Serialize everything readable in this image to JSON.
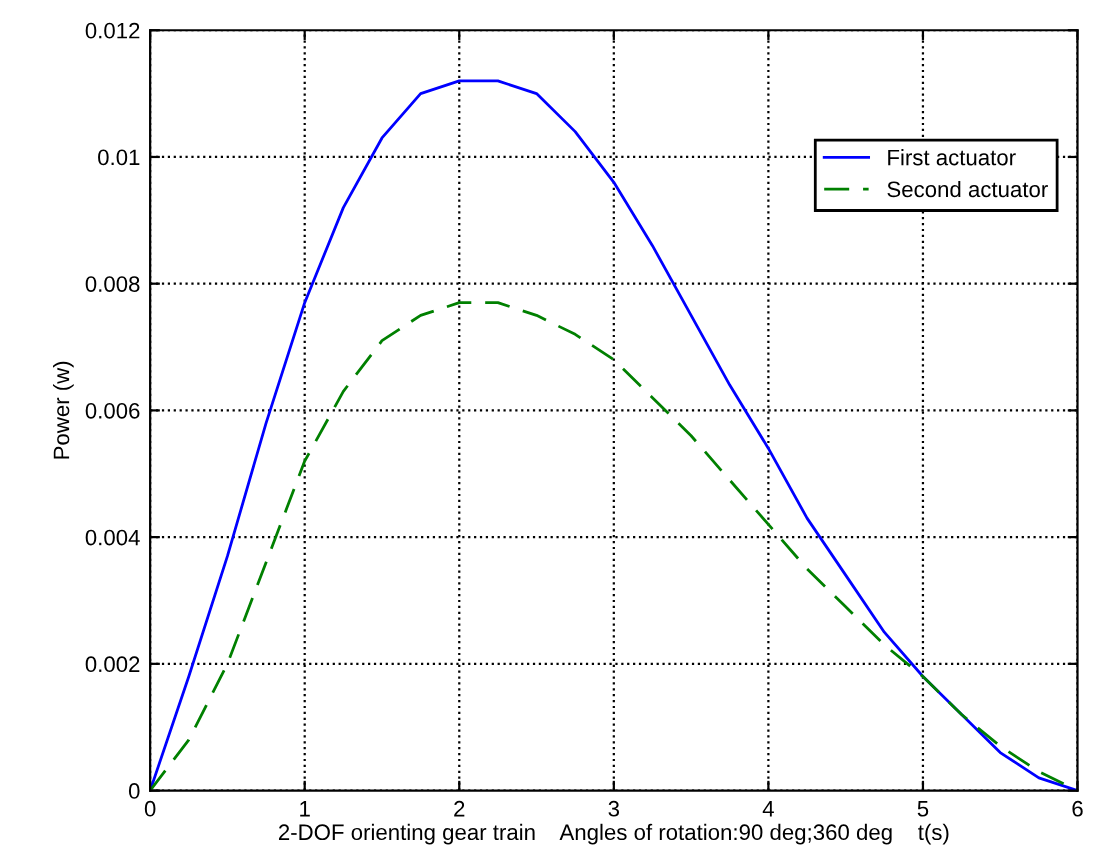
{
  "chart_data": {
    "type": "line",
    "xlabel": "2-DOF orienting gear train    Angles of rotation:90 deg;360 deg    t(s)",
    "ylabel": "Power (w)",
    "x": [
      0,
      0.25,
      0.5,
      0.75,
      1,
      1.25,
      1.5,
      1.75,
      2,
      2.25,
      2.5,
      2.75,
      3,
      3.25,
      3.5,
      3.75,
      4,
      4.25,
      4.5,
      4.75,
      5,
      5.25,
      5.5,
      5.75,
      6
    ],
    "series": [
      {
        "name": "First actuator",
        "color": "#0000ff",
        "line_style": "solid",
        "values": [
          0,
          0.0018,
          0.0037,
          0.0058,
          0.0077,
          0.0092,
          0.0103,
          0.011,
          0.0112,
          0.0112,
          0.011,
          0.0104,
          0.0096,
          0.0086,
          0.0075,
          0.0064,
          0.0054,
          0.0043,
          0.0034,
          0.0025,
          0.0018,
          0.0012,
          0.0006,
          0.0002,
          0
        ]
      },
      {
        "name": "Second actuator",
        "color": "#008000",
        "line_style": "dashed",
        "values": [
          0,
          0.0008,
          0.002,
          0.0036,
          0.0052,
          0.0063,
          0.0071,
          0.0075,
          0.0077,
          0.0077,
          0.0075,
          0.0072,
          0.0068,
          0.0062,
          0.0056,
          0.0049,
          0.0042,
          0.0035,
          0.0029,
          0.0023,
          0.0018,
          0.0012,
          0.0007,
          0.0003,
          0
        ]
      }
    ],
    "xlim": [
      0,
      6
    ],
    "xticks": [
      0,
      1,
      2,
      3,
      4,
      5,
      6
    ],
    "ylim": [
      0,
      0.012
    ],
    "yticks": [
      0,
      0.002,
      0.004,
      0.006,
      0.008,
      0.01,
      0.012
    ],
    "grid": true,
    "legend": "top right",
    "marker": "none"
  }
}
